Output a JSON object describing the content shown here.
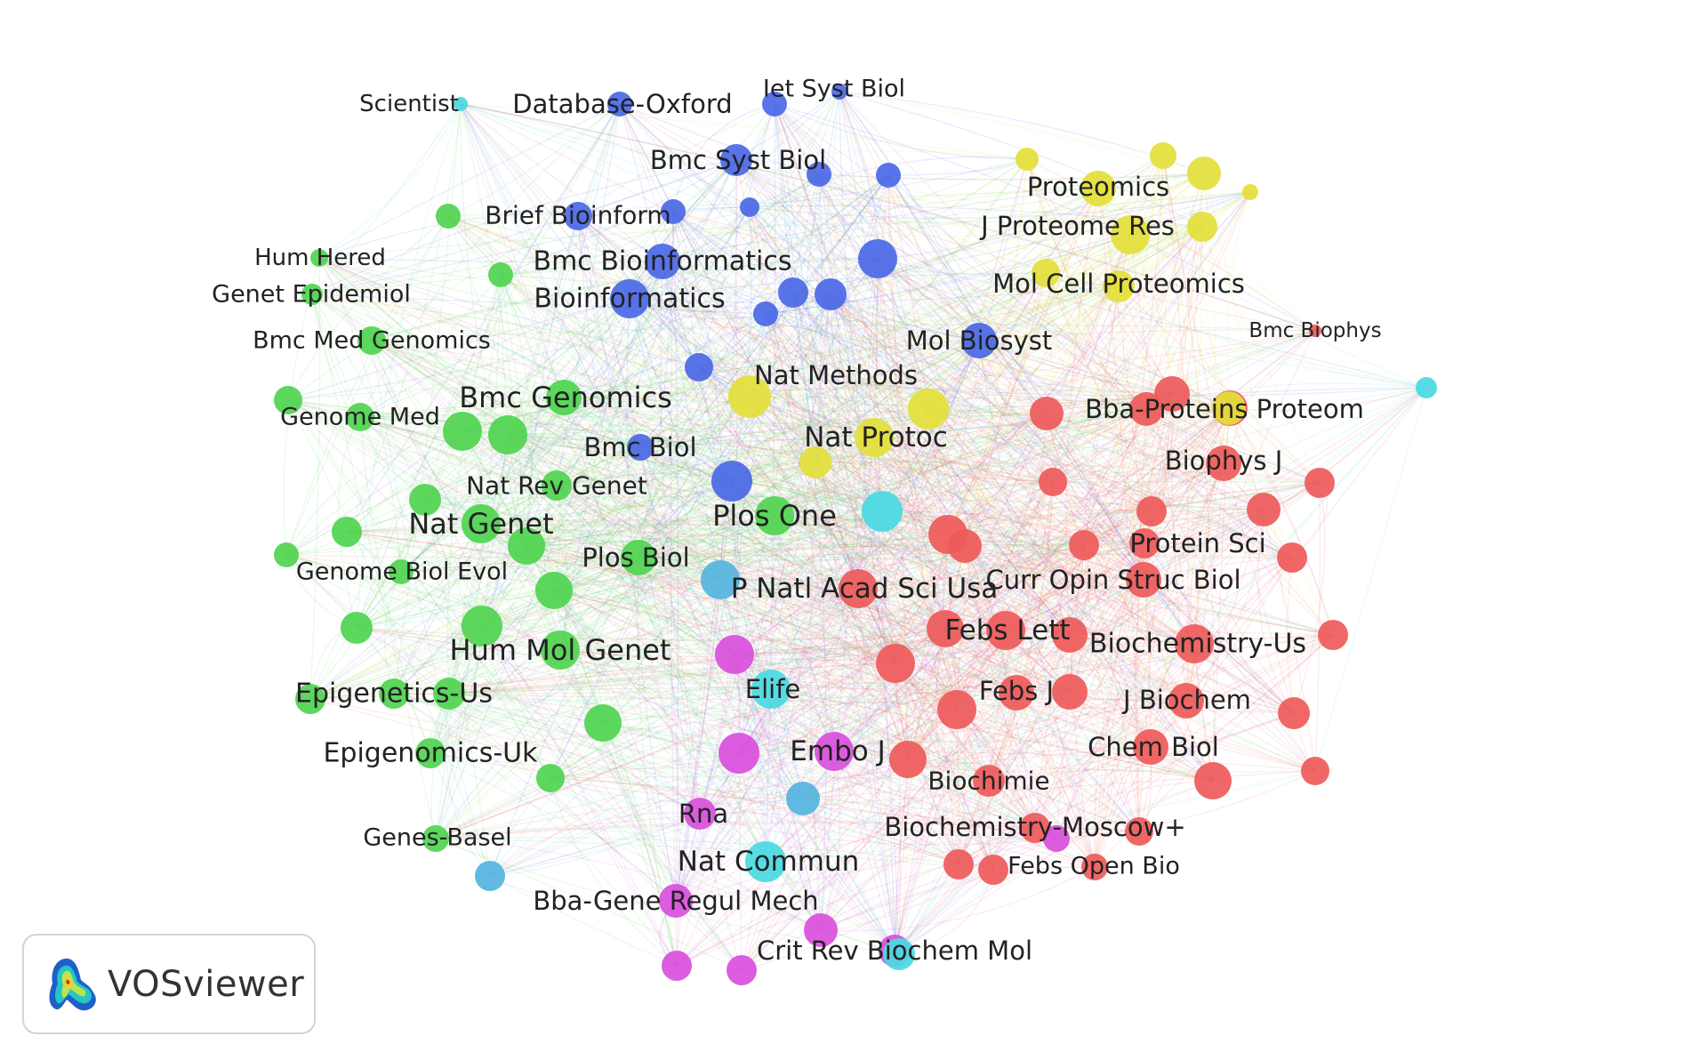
{
  "clusters": {
    "red": {
      "color": "#ee5a5a"
    },
    "green": {
      "color": "#4fd44f"
    },
    "blue": {
      "color": "#4a68e6"
    },
    "yellow": {
      "color": "#e3df3a"
    },
    "purple": {
      "color": "#d94fdc"
    },
    "cyan": {
      "color": "#4ad9e2"
    },
    "skyblue": {
      "color": "#55b4e0"
    }
  },
  "nodes": [
    {
      "label": "Scientist",
      "cluster": "cyan"
    },
    {
      "label": "Database-Oxford",
      "cluster": "blue"
    },
    {
      "label": "Iet Syst Biol",
      "cluster": "blue"
    },
    {
      "label": "Bmc Syst Biol",
      "cluster": "blue"
    },
    {
      "label": "Brief Bioinform",
      "cluster": "blue"
    },
    {
      "label": "Bmc Bioinformatics",
      "cluster": "blue"
    },
    {
      "label": "Bioinformatics",
      "cluster": "blue"
    },
    {
      "label": "Mol Biosyst",
      "cluster": "blue"
    },
    {
      "label": "Bmc Biol",
      "cluster": "blue"
    },
    {
      "label": "Hum Hered",
      "cluster": "green"
    },
    {
      "label": "Genet Epidemiol",
      "cluster": "green"
    },
    {
      "label": "Bmc Med Genomics",
      "cluster": "green"
    },
    {
      "label": "Genome Med",
      "cluster": "green"
    },
    {
      "label": "Bmc Genomics",
      "cluster": "green"
    },
    {
      "label": "Nat Rev Genet",
      "cluster": "green"
    },
    {
      "label": "Nat Genet",
      "cluster": "green"
    },
    {
      "label": "Genome Biol Evol",
      "cluster": "green"
    },
    {
      "label": "Plos Biol",
      "cluster": "green"
    },
    {
      "label": "Plos One",
      "cluster": "green"
    },
    {
      "label": "Hum Mol Genet",
      "cluster": "green"
    },
    {
      "label": "Epigenetics-Us",
      "cluster": "green"
    },
    {
      "label": "Epigenomics-Uk",
      "cluster": "green"
    },
    {
      "label": "Genes-Basel",
      "cluster": "green"
    },
    {
      "label": "Proteomics",
      "cluster": "yellow"
    },
    {
      "label": "J Proteome Res",
      "cluster": "yellow"
    },
    {
      "label": "Mol Cell Proteomics",
      "cluster": "yellow"
    },
    {
      "label": "Nat Methods",
      "cluster": "yellow"
    },
    {
      "label": "Nat Protoc",
      "cluster": "yellow"
    },
    {
      "label": "Bmc Biophys",
      "cluster": "red"
    },
    {
      "label": "Bba-Proteins Proteom",
      "cluster": "red"
    },
    {
      "label": "Biophys J",
      "cluster": "red"
    },
    {
      "label": "Protein Sci",
      "cluster": "red"
    },
    {
      "label": "Curr Opin Struc Biol",
      "cluster": "red"
    },
    {
      "label": "P Natl Acad Sci Usa",
      "cluster": "red"
    },
    {
      "label": "Febs Lett",
      "cluster": "red"
    },
    {
      "label": "Biochemistry-Us",
      "cluster": "red"
    },
    {
      "label": "Febs J",
      "cluster": "red"
    },
    {
      "label": "J Biochem",
      "cluster": "red"
    },
    {
      "label": "Chem Biol",
      "cluster": "red"
    },
    {
      "label": "Biochimie",
      "cluster": "red"
    },
    {
      "label": "Biochemistry-Moscow+",
      "cluster": "red"
    },
    {
      "label": "Febs Open Bio",
      "cluster": "red"
    },
    {
      "label": "Elife",
      "cluster": "cyan"
    },
    {
      "label": "Nat Commun",
      "cluster": "cyan"
    },
    {
      "label": "Embo J",
      "cluster": "purple"
    },
    {
      "label": "Rna",
      "cluster": "purple"
    },
    {
      "label": "Bba-Gene Regul Mech",
      "cluster": "purple"
    },
    {
      "label": "Crit Rev Biochem Mol",
      "cluster": "purple"
    }
  ],
  "unlabeled_nodes": [
    {
      "cluster": "blue"
    },
    {
      "cluster": "blue"
    },
    {
      "cluster": "blue"
    },
    {
      "cluster": "blue"
    },
    {
      "cluster": "blue"
    },
    {
      "cluster": "blue"
    },
    {
      "cluster": "blue"
    },
    {
      "cluster": "blue"
    },
    {
      "cluster": "blue"
    },
    {
      "cluster": "blue"
    },
    {
      "cluster": "blue"
    },
    {
      "cluster": "yellow"
    },
    {
      "cluster": "yellow"
    },
    {
      "cluster": "yellow"
    },
    {
      "cluster": "yellow"
    },
    {
      "cluster": "yellow"
    },
    {
      "cluster": "yellow"
    },
    {
      "cluster": "yellow"
    },
    {
      "cluster": "yellow"
    },
    {
      "cluster": "yellow"
    },
    {
      "cluster": "green"
    },
    {
      "cluster": "green"
    },
    {
      "cluster": "green"
    },
    {
      "cluster": "green"
    },
    {
      "cluster": "green"
    },
    {
      "cluster": "green"
    },
    {
      "cluster": "green"
    },
    {
      "cluster": "green"
    },
    {
      "cluster": "green"
    },
    {
      "cluster": "green"
    },
    {
      "cluster": "green"
    },
    {
      "cluster": "green"
    },
    {
      "cluster": "green"
    },
    {
      "cluster": "green"
    },
    {
      "cluster": "green"
    },
    {
      "cluster": "green"
    },
    {
      "cluster": "red"
    },
    {
      "cluster": "red"
    },
    {
      "cluster": "red"
    },
    {
      "cluster": "red"
    },
    {
      "cluster": "red"
    },
    {
      "cluster": "red"
    },
    {
      "cluster": "red"
    },
    {
      "cluster": "red"
    },
    {
      "cluster": "red"
    },
    {
      "cluster": "red"
    },
    {
      "cluster": "red"
    },
    {
      "cluster": "red"
    },
    {
      "cluster": "red"
    },
    {
      "cluster": "red"
    },
    {
      "cluster": "red"
    },
    {
      "cluster": "red"
    },
    {
      "cluster": "red"
    },
    {
      "cluster": "red"
    },
    {
      "cluster": "red"
    },
    {
      "cluster": "red"
    },
    {
      "cluster": "red"
    },
    {
      "cluster": "red"
    },
    {
      "cluster": "red"
    },
    {
      "cluster": "red"
    },
    {
      "cluster": "purple"
    },
    {
      "cluster": "purple"
    },
    {
      "cluster": "purple"
    },
    {
      "cluster": "purple"
    },
    {
      "cluster": "purple"
    },
    {
      "cluster": "purple"
    },
    {
      "cluster": "cyan"
    },
    {
      "cluster": "cyan"
    },
    {
      "cluster": "cyan"
    },
    {
      "cluster": "skyblue"
    },
    {
      "cluster": "skyblue"
    },
    {
      "cluster": "skyblue"
    }
  ],
  "brand": {
    "name": "VOSviewer"
  }
}
